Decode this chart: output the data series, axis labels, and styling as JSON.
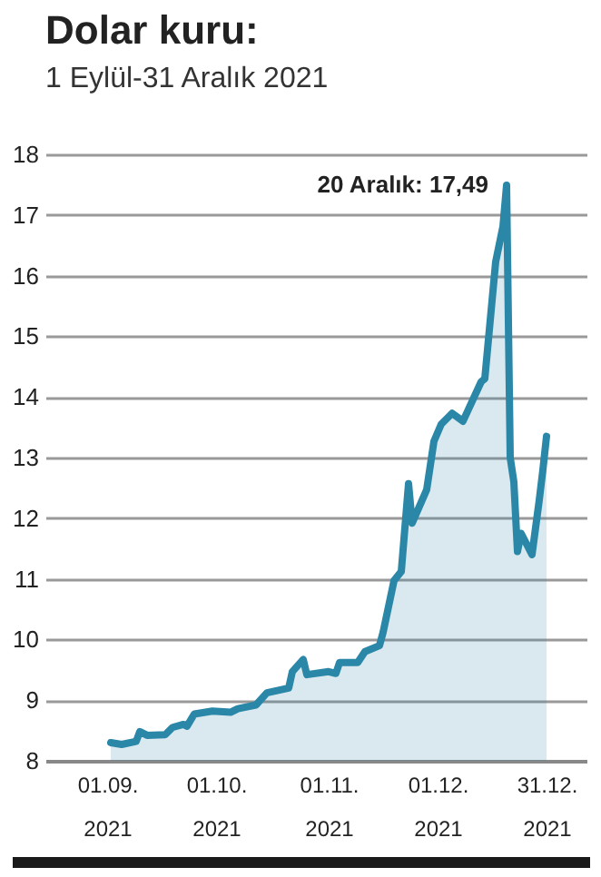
{
  "chart_data": {
    "type": "area",
    "title": "Dolar kuru:",
    "subtitle": "1 Eylül-31 Aralık 2021",
    "x": [
      "2021-09-02",
      "2021-09-05",
      "2021-09-09",
      "2021-09-10",
      "2021-09-12",
      "2021-09-17",
      "2021-09-19",
      "2021-09-22",
      "2021-09-23",
      "2021-09-25",
      "2021-09-30",
      "2021-10-05",
      "2021-10-07",
      "2021-10-12",
      "2021-10-15",
      "2021-10-21",
      "2021-10-22",
      "2021-10-25",
      "2021-10-26",
      "2021-11-01",
      "2021-11-03",
      "2021-11-04",
      "2021-11-09",
      "2021-11-11",
      "2021-11-15",
      "2021-11-16",
      "2021-11-19",
      "2021-11-21",
      "2021-11-23",
      "2021-11-24",
      "2021-11-28",
      "2021-11-30",
      "2021-12-02",
      "2021-12-05",
      "2021-12-08",
      "2021-12-13",
      "2021-12-14",
      "2021-12-17",
      "2021-12-19",
      "2021-12-20",
      "2021-12-21",
      "2021-12-22",
      "2021-12-23",
      "2021-12-24",
      "2021-12-27",
      "2021-12-29",
      "2021-12-30",
      "2021-12-31"
    ],
    "series": [
      {
        "color": "#2b87a7",
        "values": [
          8.3,
          8.27,
          8.32,
          8.48,
          8.42,
          8.43,
          8.55,
          8.6,
          8.57,
          8.77,
          8.82,
          8.8,
          8.86,
          8.92,
          9.12,
          9.2,
          9.47,
          9.67,
          9.42,
          9.47,
          9.44,
          9.62,
          9.62,
          9.8,
          9.9,
          10.12,
          10.97,
          11.12,
          12.57,
          11.92,
          12.47,
          13.27,
          13.55,
          13.73,
          13.6,
          14.25,
          14.3,
          16.23,
          16.81,
          17.49,
          13.0,
          12.6,
          11.45,
          11.75,
          11.4,
          12.3,
          12.8,
          13.35
        ]
      }
    ],
    "annotations": [
      {
        "text": "20 Aralık: 17,49",
        "x": "2021-12-20",
        "y": 17.49
      }
    ],
    "xlim": [
      "2021-08-15",
      "2022-01-11"
    ],
    "xticks": [
      {
        "value": "2021-09-01",
        "label": "01.09.\n2021"
      },
      {
        "value": "2021-10-01",
        "label": "01.10.\n2021"
      },
      {
        "value": "2021-11-01",
        "label": "01.11.\n2021"
      },
      {
        "value": "2021-12-01",
        "label": "01.12.\n2021"
      },
      {
        "value": "2021-12-31",
        "label": "31.12.\n2021"
      }
    ],
    "ylim": [
      8,
      18
    ],
    "yticks": [
      8,
      9,
      10,
      11,
      12,
      13,
      14,
      15,
      16,
      17,
      18
    ],
    "grid": "y"
  }
}
